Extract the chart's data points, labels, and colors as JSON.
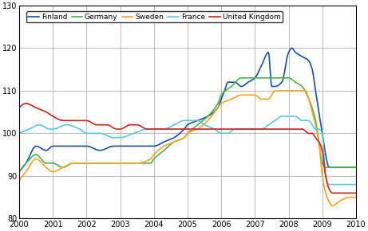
{
  "xlim": [
    2000,
    2010
  ],
  "ylim": [
    80,
    130
  ],
  "yticks": [
    80,
    90,
    100,
    110,
    120,
    130
  ],
  "xticks": [
    2000,
    2001,
    2002,
    2003,
    2004,
    2005,
    2006,
    2007,
    2008,
    2009,
    2010
  ],
  "countries": [
    "Finland",
    "Germany",
    "Sweden",
    "France",
    "United Kingdom"
  ],
  "colors": [
    "#1c4fa0",
    "#4caf50",
    "#f5a623",
    "#5bc8d6",
    "#cc2222"
  ],
  "linewidth": 1.2,
  "finland_kp": [
    [
      2000.0,
      91
    ],
    [
      2000.2,
      93
    ],
    [
      2000.5,
      97
    ],
    [
      2000.8,
      96
    ],
    [
      2001.0,
      97
    ],
    [
      2001.3,
      97
    ],
    [
      2001.6,
      97
    ],
    [
      2001.9,
      97
    ],
    [
      2002.0,
      97
    ],
    [
      2002.4,
      96
    ],
    [
      2002.8,
      97
    ],
    [
      2003.0,
      97
    ],
    [
      2003.5,
      97
    ],
    [
      2003.9,
      97
    ],
    [
      2004.0,
      97
    ],
    [
      2004.3,
      98
    ],
    [
      2004.6,
      99
    ],
    [
      2004.9,
      101
    ],
    [
      2005.0,
      102
    ],
    [
      2005.3,
      103
    ],
    [
      2005.6,
      104
    ],
    [
      2005.9,
      106
    ],
    [
      2006.0,
      108
    ],
    [
      2006.1,
      110
    ],
    [
      2006.2,
      112
    ],
    [
      2006.4,
      112
    ],
    [
      2006.6,
      111
    ],
    [
      2006.8,
      112
    ],
    [
      2007.0,
      113
    ],
    [
      2007.2,
      116
    ],
    [
      2007.4,
      119
    ],
    [
      2007.5,
      111
    ],
    [
      2007.6,
      111
    ],
    [
      2007.8,
      112
    ],
    [
      2008.0,
      119
    ],
    [
      2008.1,
      120
    ],
    [
      2008.2,
      119
    ],
    [
      2008.4,
      118
    ],
    [
      2008.6,
      117
    ],
    [
      2008.7,
      115
    ],
    [
      2008.8,
      110
    ],
    [
      2008.9,
      105
    ],
    [
      2009.0,
      100
    ],
    [
      2009.1,
      95
    ],
    [
      2009.2,
      92
    ],
    [
      2009.3,
      92
    ],
    [
      2009.6,
      92
    ],
    [
      2009.9,
      92
    ],
    [
      2010.0,
      92
    ]
  ],
  "germany_kp": [
    [
      2000.0,
      91
    ],
    [
      2000.2,
      93
    ],
    [
      2000.5,
      95
    ],
    [
      2000.8,
      93
    ],
    [
      2001.0,
      93
    ],
    [
      2001.3,
      92
    ],
    [
      2001.6,
      93
    ],
    [
      2001.9,
      93
    ],
    [
      2002.0,
      93
    ],
    [
      2002.4,
      93
    ],
    [
      2002.8,
      93
    ],
    [
      2003.0,
      93
    ],
    [
      2003.5,
      93
    ],
    [
      2003.9,
      93
    ],
    [
      2004.0,
      94
    ],
    [
      2004.3,
      96
    ],
    [
      2004.6,
      98
    ],
    [
      2004.9,
      99
    ],
    [
      2005.0,
      100
    ],
    [
      2005.3,
      102
    ],
    [
      2005.6,
      104
    ],
    [
      2005.9,
      107
    ],
    [
      2006.0,
      109
    ],
    [
      2006.3,
      111
    ],
    [
      2006.6,
      113
    ],
    [
      2006.9,
      113
    ],
    [
      2007.0,
      113
    ],
    [
      2007.3,
      113
    ],
    [
      2007.5,
      113
    ],
    [
      2007.8,
      113
    ],
    [
      2008.0,
      113
    ],
    [
      2008.2,
      112
    ],
    [
      2008.4,
      111
    ],
    [
      2008.6,
      108
    ],
    [
      2008.8,
      103
    ],
    [
      2008.9,
      98
    ],
    [
      2009.0,
      93
    ],
    [
      2009.1,
      92
    ],
    [
      2009.2,
      92
    ],
    [
      2009.5,
      92
    ],
    [
      2009.9,
      92
    ],
    [
      2010.0,
      92
    ]
  ],
  "sweden_kp": [
    [
      2000.0,
      89
    ],
    [
      2000.2,
      91
    ],
    [
      2000.5,
      94
    ],
    [
      2000.8,
      92
    ],
    [
      2001.0,
      91
    ],
    [
      2001.3,
      92
    ],
    [
      2001.6,
      93
    ],
    [
      2001.9,
      93
    ],
    [
      2002.0,
      93
    ],
    [
      2002.4,
      93
    ],
    [
      2002.8,
      93
    ],
    [
      2003.0,
      93
    ],
    [
      2003.5,
      93
    ],
    [
      2003.9,
      94
    ],
    [
      2004.0,
      95
    ],
    [
      2004.3,
      97
    ],
    [
      2004.6,
      98
    ],
    [
      2004.9,
      99
    ],
    [
      2005.0,
      100
    ],
    [
      2005.3,
      101
    ],
    [
      2005.6,
      103
    ],
    [
      2005.9,
      106
    ],
    [
      2006.0,
      107
    ],
    [
      2006.3,
      108
    ],
    [
      2006.6,
      109
    ],
    [
      2006.9,
      109
    ],
    [
      2007.0,
      109
    ],
    [
      2007.2,
      108
    ],
    [
      2007.4,
      108
    ],
    [
      2007.5,
      109
    ],
    [
      2007.6,
      110
    ],
    [
      2007.8,
      110
    ],
    [
      2008.0,
      110
    ],
    [
      2008.2,
      110
    ],
    [
      2008.4,
      110
    ],
    [
      2008.5,
      110
    ],
    [
      2008.6,
      108
    ],
    [
      2008.7,
      105
    ],
    [
      2008.8,
      102
    ],
    [
      2008.9,
      98
    ],
    [
      2009.0,
      90
    ],
    [
      2009.1,
      86
    ],
    [
      2009.2,
      84
    ],
    [
      2009.3,
      83
    ],
    [
      2009.5,
      84
    ],
    [
      2009.8,
      85
    ],
    [
      2010.0,
      85
    ]
  ],
  "france_kp": [
    [
      2000.0,
      100
    ],
    [
      2000.3,
      101
    ],
    [
      2000.6,
      102
    ],
    [
      2000.9,
      101
    ],
    [
      2001.0,
      101
    ],
    [
      2001.4,
      102
    ],
    [
      2001.8,
      101
    ],
    [
      2002.0,
      100
    ],
    [
      2002.4,
      100
    ],
    [
      2002.8,
      99
    ],
    [
      2003.0,
      99
    ],
    [
      2003.4,
      100
    ],
    [
      2003.8,
      101
    ],
    [
      2004.0,
      101
    ],
    [
      2004.3,
      101
    ],
    [
      2004.6,
      102
    ],
    [
      2004.9,
      103
    ],
    [
      2005.0,
      103
    ],
    [
      2005.3,
      103
    ],
    [
      2005.5,
      102
    ],
    [
      2005.8,
      101
    ],
    [
      2006.0,
      100
    ],
    [
      2006.2,
      100
    ],
    [
      2006.4,
      101
    ],
    [
      2006.6,
      101
    ],
    [
      2006.8,
      101
    ],
    [
      2007.0,
      101
    ],
    [
      2007.2,
      101
    ],
    [
      2007.4,
      102
    ],
    [
      2007.6,
      103
    ],
    [
      2007.8,
      104
    ],
    [
      2008.0,
      104
    ],
    [
      2008.2,
      104
    ],
    [
      2008.4,
      103
    ],
    [
      2008.6,
      103
    ],
    [
      2008.7,
      102
    ],
    [
      2008.8,
      101
    ],
    [
      2008.9,
      101
    ],
    [
      2009.0,
      100
    ],
    [
      2009.1,
      90
    ],
    [
      2009.2,
      88
    ],
    [
      2009.4,
      88
    ],
    [
      2009.6,
      88
    ],
    [
      2009.8,
      88
    ],
    [
      2009.9,
      88
    ],
    [
      2010.0,
      88
    ]
  ],
  "uk_kp": [
    [
      2000.0,
      106
    ],
    [
      2000.2,
      107
    ],
    [
      2000.5,
      106
    ],
    [
      2000.8,
      105
    ],
    [
      2001.0,
      104
    ],
    [
      2001.3,
      103
    ],
    [
      2001.5,
      103
    ],
    [
      2001.8,
      103
    ],
    [
      2002.0,
      103
    ],
    [
      2002.3,
      102
    ],
    [
      2002.6,
      102
    ],
    [
      2002.9,
      101
    ],
    [
      2003.0,
      101
    ],
    [
      2003.3,
      102
    ],
    [
      2003.5,
      102
    ],
    [
      2003.8,
      101
    ],
    [
      2004.0,
      101
    ],
    [
      2004.3,
      101
    ],
    [
      2004.6,
      101
    ],
    [
      2004.9,
      101
    ],
    [
      2005.0,
      101
    ],
    [
      2005.3,
      101
    ],
    [
      2005.6,
      101
    ],
    [
      2005.9,
      101
    ],
    [
      2006.0,
      101
    ],
    [
      2006.3,
      101
    ],
    [
      2006.6,
      101
    ],
    [
      2006.9,
      101
    ],
    [
      2007.0,
      101
    ],
    [
      2007.3,
      101
    ],
    [
      2007.5,
      101
    ],
    [
      2007.8,
      101
    ],
    [
      2008.0,
      101
    ],
    [
      2008.2,
      101
    ],
    [
      2008.4,
      101
    ],
    [
      2008.6,
      100
    ],
    [
      2008.7,
      100
    ],
    [
      2008.8,
      99
    ],
    [
      2008.9,
      98
    ],
    [
      2009.0,
      96
    ],
    [
      2009.1,
      90
    ],
    [
      2009.2,
      87
    ],
    [
      2009.3,
      86
    ],
    [
      2009.5,
      86
    ],
    [
      2009.8,
      86
    ],
    [
      2010.0,
      86
    ]
  ]
}
